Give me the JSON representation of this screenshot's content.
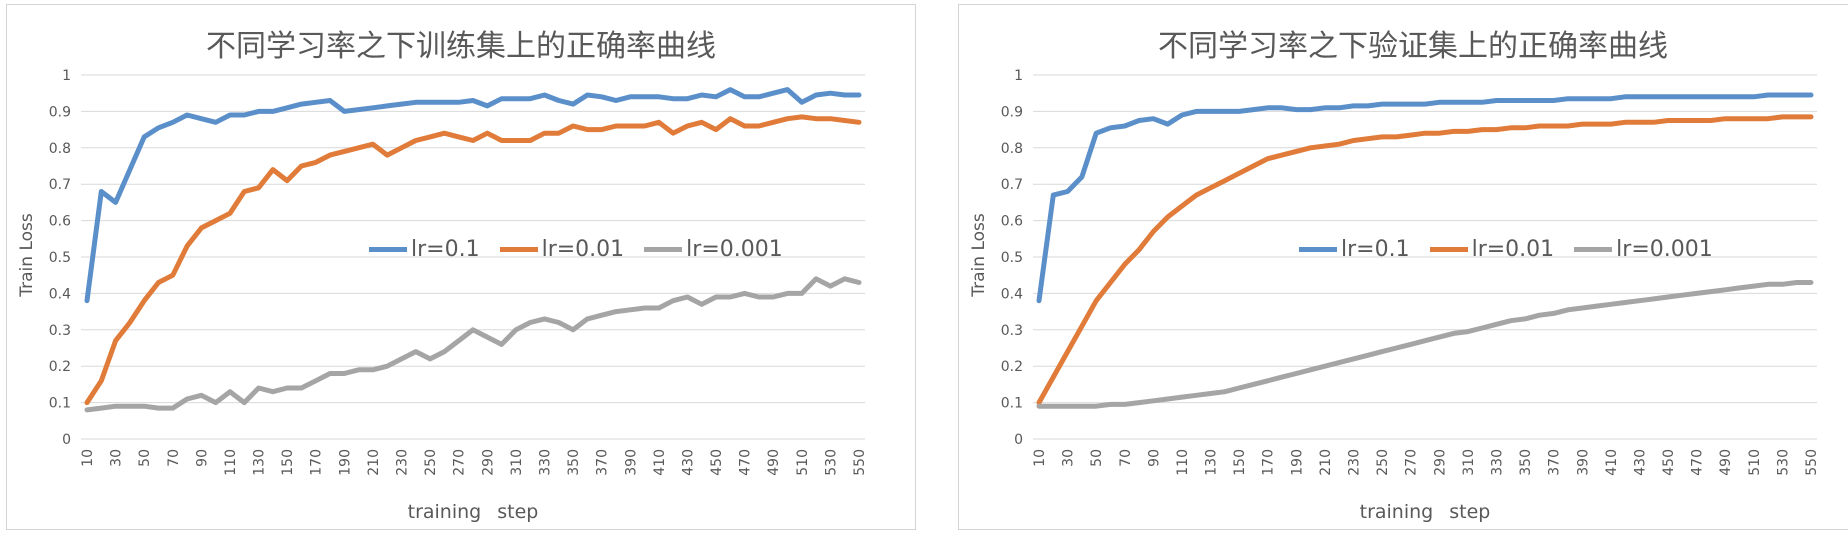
{
  "chart_data": [
    {
      "type": "line",
      "title": "不同学习率之下训练集上的正确率曲线",
      "xlabel": "training   step",
      "ylabel": "Train  Loss",
      "ylim": [
        0,
        1
      ],
      "yticks": [
        "0",
        "0.1",
        "0.2",
        "0.3",
        "0.4",
        "0.5",
        "0.6",
        "0.7",
        "0.8",
        "0.9",
        "1"
      ],
      "x": [
        10,
        20,
        30,
        40,
        50,
        60,
        70,
        80,
        90,
        100,
        110,
        120,
        130,
        140,
        150,
        160,
        170,
        180,
        190,
        200,
        210,
        220,
        230,
        240,
        250,
        260,
        270,
        280,
        290,
        300,
        310,
        320,
        330,
        340,
        350,
        360,
        370,
        380,
        390,
        400,
        410,
        420,
        430,
        440,
        450,
        460,
        470,
        480,
        490,
        500,
        510,
        520,
        530,
        540,
        550
      ],
      "xticks": [
        "10",
        "30",
        "50",
        "70",
        "90",
        "110",
        "130",
        "150",
        "170",
        "190",
        "210",
        "230",
        "250",
        "270",
        "290",
        "310",
        "330",
        "350",
        "370",
        "390",
        "410",
        "430",
        "450",
        "470",
        "490",
        "510",
        "530",
        "550"
      ],
      "grid": true,
      "legend_position": "center-right",
      "series": [
        {
          "name": "lr=0.1",
          "color": "#5b8fc9",
          "values": [
            0.38,
            0.68,
            0.65,
            0.74,
            0.83,
            0.855,
            0.87,
            0.89,
            0.88,
            0.87,
            0.89,
            0.89,
            0.9,
            0.9,
            0.91,
            0.92,
            0.925,
            0.93,
            0.9,
            0.905,
            0.91,
            0.915,
            0.92,
            0.925,
            0.925,
            0.925,
            0.925,
            0.93,
            0.915,
            0.935,
            0.935,
            0.935,
            0.945,
            0.93,
            0.92,
            0.945,
            0.94,
            0.93,
            0.94,
            0.94,
            0.94,
            0.935,
            0.935,
            0.945,
            0.94,
            0.96,
            0.94,
            0.94,
            0.95,
            0.96,
            0.925,
            0.945,
            0.95,
            0.945,
            0.945
          ]
        },
        {
          "name": "lr=0.01",
          "color": "#e07b39",
          "values": [
            0.1,
            0.16,
            0.27,
            0.32,
            0.38,
            0.43,
            0.45,
            0.53,
            0.58,
            0.6,
            0.62,
            0.68,
            0.69,
            0.74,
            0.71,
            0.75,
            0.76,
            0.78,
            0.79,
            0.8,
            0.81,
            0.78,
            0.8,
            0.82,
            0.83,
            0.84,
            0.83,
            0.82,
            0.84,
            0.82,
            0.82,
            0.82,
            0.84,
            0.84,
            0.86,
            0.85,
            0.85,
            0.86,
            0.86,
            0.86,
            0.87,
            0.84,
            0.86,
            0.87,
            0.85,
            0.88,
            0.86,
            0.86,
            0.87,
            0.88,
            0.885,
            0.88,
            0.88,
            0.875,
            0.87
          ]
        },
        {
          "name": "lr=0.001",
          "color": "#a5a5a5",
          "values": [
            0.08,
            0.085,
            0.09,
            0.09,
            0.09,
            0.085,
            0.085,
            0.11,
            0.12,
            0.1,
            0.13,
            0.1,
            0.14,
            0.13,
            0.14,
            0.14,
            0.16,
            0.18,
            0.18,
            0.19,
            0.19,
            0.2,
            0.22,
            0.24,
            0.22,
            0.24,
            0.27,
            0.3,
            0.28,
            0.26,
            0.3,
            0.32,
            0.33,
            0.32,
            0.3,
            0.33,
            0.34,
            0.35,
            0.355,
            0.36,
            0.36,
            0.38,
            0.39,
            0.37,
            0.39,
            0.39,
            0.4,
            0.39,
            0.39,
            0.4,
            0.4,
            0.44,
            0.42,
            0.44,
            0.43
          ]
        }
      ]
    },
    {
      "type": "line",
      "title": "不同学习率之下验证集上的正确率曲线",
      "xlabel": "training   step",
      "ylabel": "Train  Loss",
      "ylim": [
        0,
        1
      ],
      "yticks": [
        "0",
        "0.1",
        "0.2",
        "0.3",
        "0.4",
        "0.5",
        "0.6",
        "0.7",
        "0.8",
        "0.9",
        "1"
      ],
      "x": [
        10,
        20,
        30,
        40,
        50,
        60,
        70,
        80,
        90,
        100,
        110,
        120,
        130,
        140,
        150,
        160,
        170,
        180,
        190,
        200,
        210,
        220,
        230,
        240,
        250,
        260,
        270,
        280,
        290,
        300,
        310,
        320,
        330,
        340,
        350,
        360,
        370,
        380,
        390,
        400,
        410,
        420,
        430,
        440,
        450,
        460,
        470,
        480,
        490,
        500,
        510,
        520,
        530,
        540,
        550
      ],
      "xticks": [
        "10",
        "30",
        "50",
        "70",
        "90",
        "110",
        "130",
        "150",
        "170",
        "190",
        "210",
        "230",
        "250",
        "270",
        "290",
        "310",
        "330",
        "350",
        "370",
        "390",
        "410",
        "430",
        "450",
        "470",
        "490",
        "510",
        "530",
        "550"
      ],
      "grid": true,
      "legend_position": "center-right",
      "series": [
        {
          "name": "lr=0.1",
          "color": "#5b8fc9",
          "values": [
            0.38,
            0.67,
            0.68,
            0.72,
            0.84,
            0.855,
            0.86,
            0.875,
            0.88,
            0.865,
            0.89,
            0.9,
            0.9,
            0.9,
            0.9,
            0.905,
            0.91,
            0.91,
            0.905,
            0.905,
            0.91,
            0.91,
            0.915,
            0.915,
            0.92,
            0.92,
            0.92,
            0.92,
            0.925,
            0.925,
            0.925,
            0.925,
            0.93,
            0.93,
            0.93,
            0.93,
            0.93,
            0.935,
            0.935,
            0.935,
            0.935,
            0.94,
            0.94,
            0.94,
            0.94,
            0.94,
            0.94,
            0.94,
            0.94,
            0.94,
            0.94,
            0.945,
            0.945,
            0.945,
            0.945
          ]
        },
        {
          "name": "lr=0.01",
          "color": "#e07b39",
          "values": [
            0.1,
            0.17,
            0.24,
            0.31,
            0.38,
            0.43,
            0.48,
            0.52,
            0.57,
            0.61,
            0.64,
            0.67,
            0.69,
            0.71,
            0.73,
            0.75,
            0.77,
            0.78,
            0.79,
            0.8,
            0.805,
            0.81,
            0.82,
            0.825,
            0.83,
            0.83,
            0.835,
            0.84,
            0.84,
            0.845,
            0.845,
            0.85,
            0.85,
            0.855,
            0.855,
            0.86,
            0.86,
            0.86,
            0.865,
            0.865,
            0.865,
            0.87,
            0.87,
            0.87,
            0.875,
            0.875,
            0.875,
            0.875,
            0.88,
            0.88,
            0.88,
            0.88,
            0.885,
            0.885,
            0.885
          ]
        },
        {
          "name": "lr=0.001",
          "color": "#a5a5a5",
          "values": [
            0.09,
            0.09,
            0.09,
            0.09,
            0.09,
            0.095,
            0.095,
            0.1,
            0.105,
            0.11,
            0.115,
            0.12,
            0.125,
            0.13,
            0.14,
            0.15,
            0.16,
            0.17,
            0.18,
            0.19,
            0.2,
            0.21,
            0.22,
            0.23,
            0.24,
            0.25,
            0.26,
            0.27,
            0.28,
            0.29,
            0.295,
            0.305,
            0.315,
            0.325,
            0.33,
            0.34,
            0.345,
            0.355,
            0.36,
            0.365,
            0.37,
            0.375,
            0.38,
            0.385,
            0.39,
            0.395,
            0.4,
            0.405,
            0.41,
            0.415,
            0.42,
            0.425,
            0.425,
            0.43,
            0.43
          ]
        }
      ]
    }
  ]
}
